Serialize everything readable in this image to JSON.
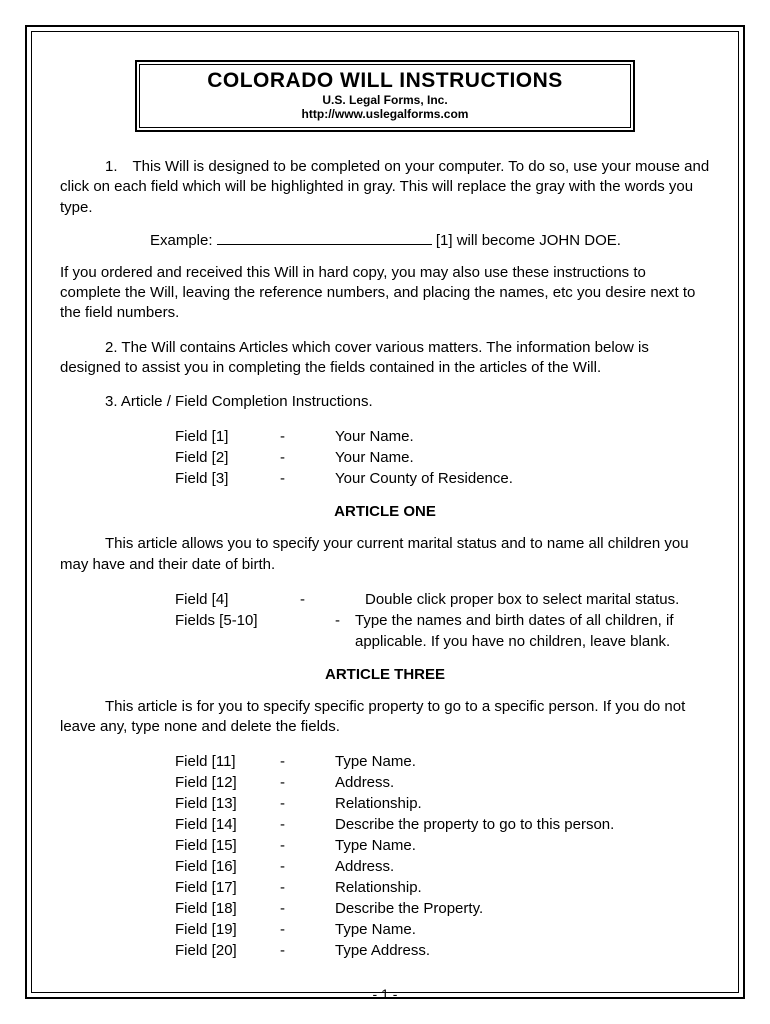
{
  "header": {
    "title": "COLORADO WILL INSTRUCTIONS",
    "subtitle": "U.S. Legal Forms, Inc.",
    "url": "http://www.uslegalforms.com"
  },
  "para1": "1. This Will is designed to be completed on your computer.  To do so, use your mouse and click on each field which will be highlighted in gray.  This will replace the gray with the words you type.",
  "example_label": "Example:",
  "example_suffix": "[1] will become JOHN DOE.",
  "para_hardcopy": "If you ordered and received this Will in hard copy, you may also use these instructions to complete the Will, leaving the reference numbers, and placing the names, etc you desire next to the field numbers.",
  "para2": "2.   The Will contains Articles which cover various matters. The information below is designed to assist you in completing the fields contained in the articles of the Will.",
  "para3": "3.   Article / Field Completion Instructions.",
  "fields_top": [
    {
      "label": "Field [1]",
      "dash": "-",
      "desc": "Your Name."
    },
    {
      "label": "Field [2]",
      "dash": "-",
      "desc": "Your Name."
    },
    {
      "label": "Field [3]",
      "dash": "-",
      "desc": "Your County of Residence."
    }
  ],
  "article_one": {
    "heading": "ARTICLE ONE",
    "text": "This article allows you to specify your current marital status and to name all children you may have and their date of birth.",
    "fields": [
      {
        "label": "Field [4]",
        "dash": "-",
        "desc": "Double click proper box to select marital status."
      },
      {
        "label": "Fields [5-10]",
        "dash": "-",
        "desc": "Type the names and birth dates of all children, if applicable. If you have no children, leave blank."
      }
    ]
  },
  "article_three": {
    "heading": "ARTICLE THREE",
    "text": "This article is for you to specify specific property to go to a specific person. If you do not leave any, type none and delete the fields.",
    "fields": [
      {
        "label": "Field [11]",
        "dash": "-",
        "desc": "Type Name."
      },
      {
        "label": "Field [12]",
        "dash": "-",
        "desc": "Address."
      },
      {
        "label": "Field [13]",
        "dash": "-",
        "desc": "Relationship."
      },
      {
        "label": "Field [14]",
        "dash": "-",
        "desc": "Describe the property to go to this person."
      },
      {
        "label": "Field [15]",
        "dash": "-",
        "desc": "Type Name."
      },
      {
        "label": "Field [16]",
        "dash": "-",
        "desc": "Address."
      },
      {
        "label": "Field [17]",
        "dash": "-",
        "desc": "Relationship."
      },
      {
        "label": "Field [18]",
        "dash": "-",
        "desc": "Describe the Property."
      },
      {
        "label": "Field [19]",
        "dash": "-",
        "desc": "Type Name."
      },
      {
        "label": "Field [20]",
        "dash": "-",
        "desc": "Type Address."
      }
    ]
  },
  "page_number": "- 1 -"
}
